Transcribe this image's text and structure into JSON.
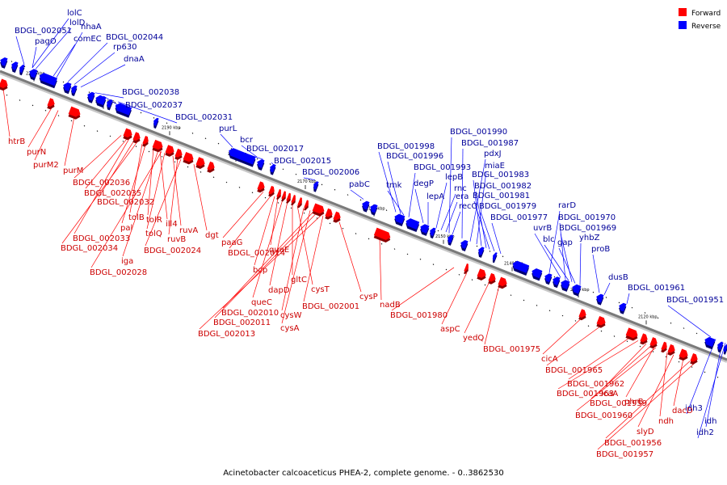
{
  "caption": "Acinetobacter calcoaceticus PHEA-2, complete genome. - 0..3862530",
  "colors": {
    "forward": "#ff0000",
    "reverse": "#0000ff",
    "forward_label": "#cc0000",
    "reverse_label": "#000099"
  },
  "legend": [
    {
      "strand": "forward",
      "label": "Forward"
    },
    {
      "strand": "reverse",
      "label": "Reverse"
    }
  ],
  "scale_ticks": [
    "2210 kbp",
    "2200 kbp",
    "2190 kbp",
    "2180 kbp",
    "2170 kbp",
    "2160 kbp",
    "2150 kbp",
    "2140 kbp",
    "2130 kbp",
    "2120 kbp"
  ],
  "reverse_labels": [
    "lolC",
    "lolD",
    "BDGL_002051",
    "pagO",
    "comEC",
    "nhaA",
    "BDGL_002044",
    "rp630",
    "dnaA",
    "BDGL_002038",
    "BDGL_002037",
    "BDGL_002031",
    "purL",
    "bcr",
    "BDGL_002017",
    "BDGL_002015",
    "BDGL_002006",
    "pabC",
    "BDGL_001998",
    "BDGL_001996",
    "tmk",
    "BDGL_001993",
    "degP",
    "lepA",
    "lepB",
    "rnc",
    "era",
    "recO",
    "BDGL_001990",
    "BDGL_001987",
    "pdxJ",
    "miaE",
    "BDGL_001983",
    "BDGL_001982",
    "BDGL_001981",
    "BDGL_001979",
    "BDGL_001977",
    "rarD",
    "BDGL_001970",
    "uvrB",
    "BDGL_001969",
    "blc",
    "yhbZ",
    "gap",
    "proB",
    "dusB",
    "BDGL_001961",
    "BDGL_001951",
    "idh3",
    "idh",
    "idh2"
  ],
  "forward_labels": [
    "htrB",
    "purN",
    "purM2",
    "purM",
    "BDGL_002036",
    "BDGL_002035",
    "BDGL_002032",
    "tolB",
    "pal",
    "tolR",
    "ill4",
    "tolQ",
    "ruvA",
    "ruvB",
    "dgt",
    "BDGL_002033",
    "BDGL_002034",
    "BDGL_002024",
    "iga",
    "BDGL_002028",
    "paaG",
    "BDGL_002014",
    "bcp",
    "queE",
    "queC",
    "dapD",
    "gltC",
    "cysT",
    "cysW",
    "cysA",
    "BDGL_002010",
    "BDGL_002011",
    "BDGL_002013",
    "BDGL_002001",
    "cysP",
    "nadB",
    "BDGL_001980",
    "aspC",
    "yedQ",
    "BDGL_001975",
    "cicA",
    "BDGL_001965",
    "BDGL_001962",
    "BDGL_001963",
    "icaA",
    "BDGL_001959",
    "phrB",
    "BDGL_001960",
    "ndh",
    "slyD",
    "dacD",
    "BDGL_001956",
    "BDGL_001957"
  ]
}
